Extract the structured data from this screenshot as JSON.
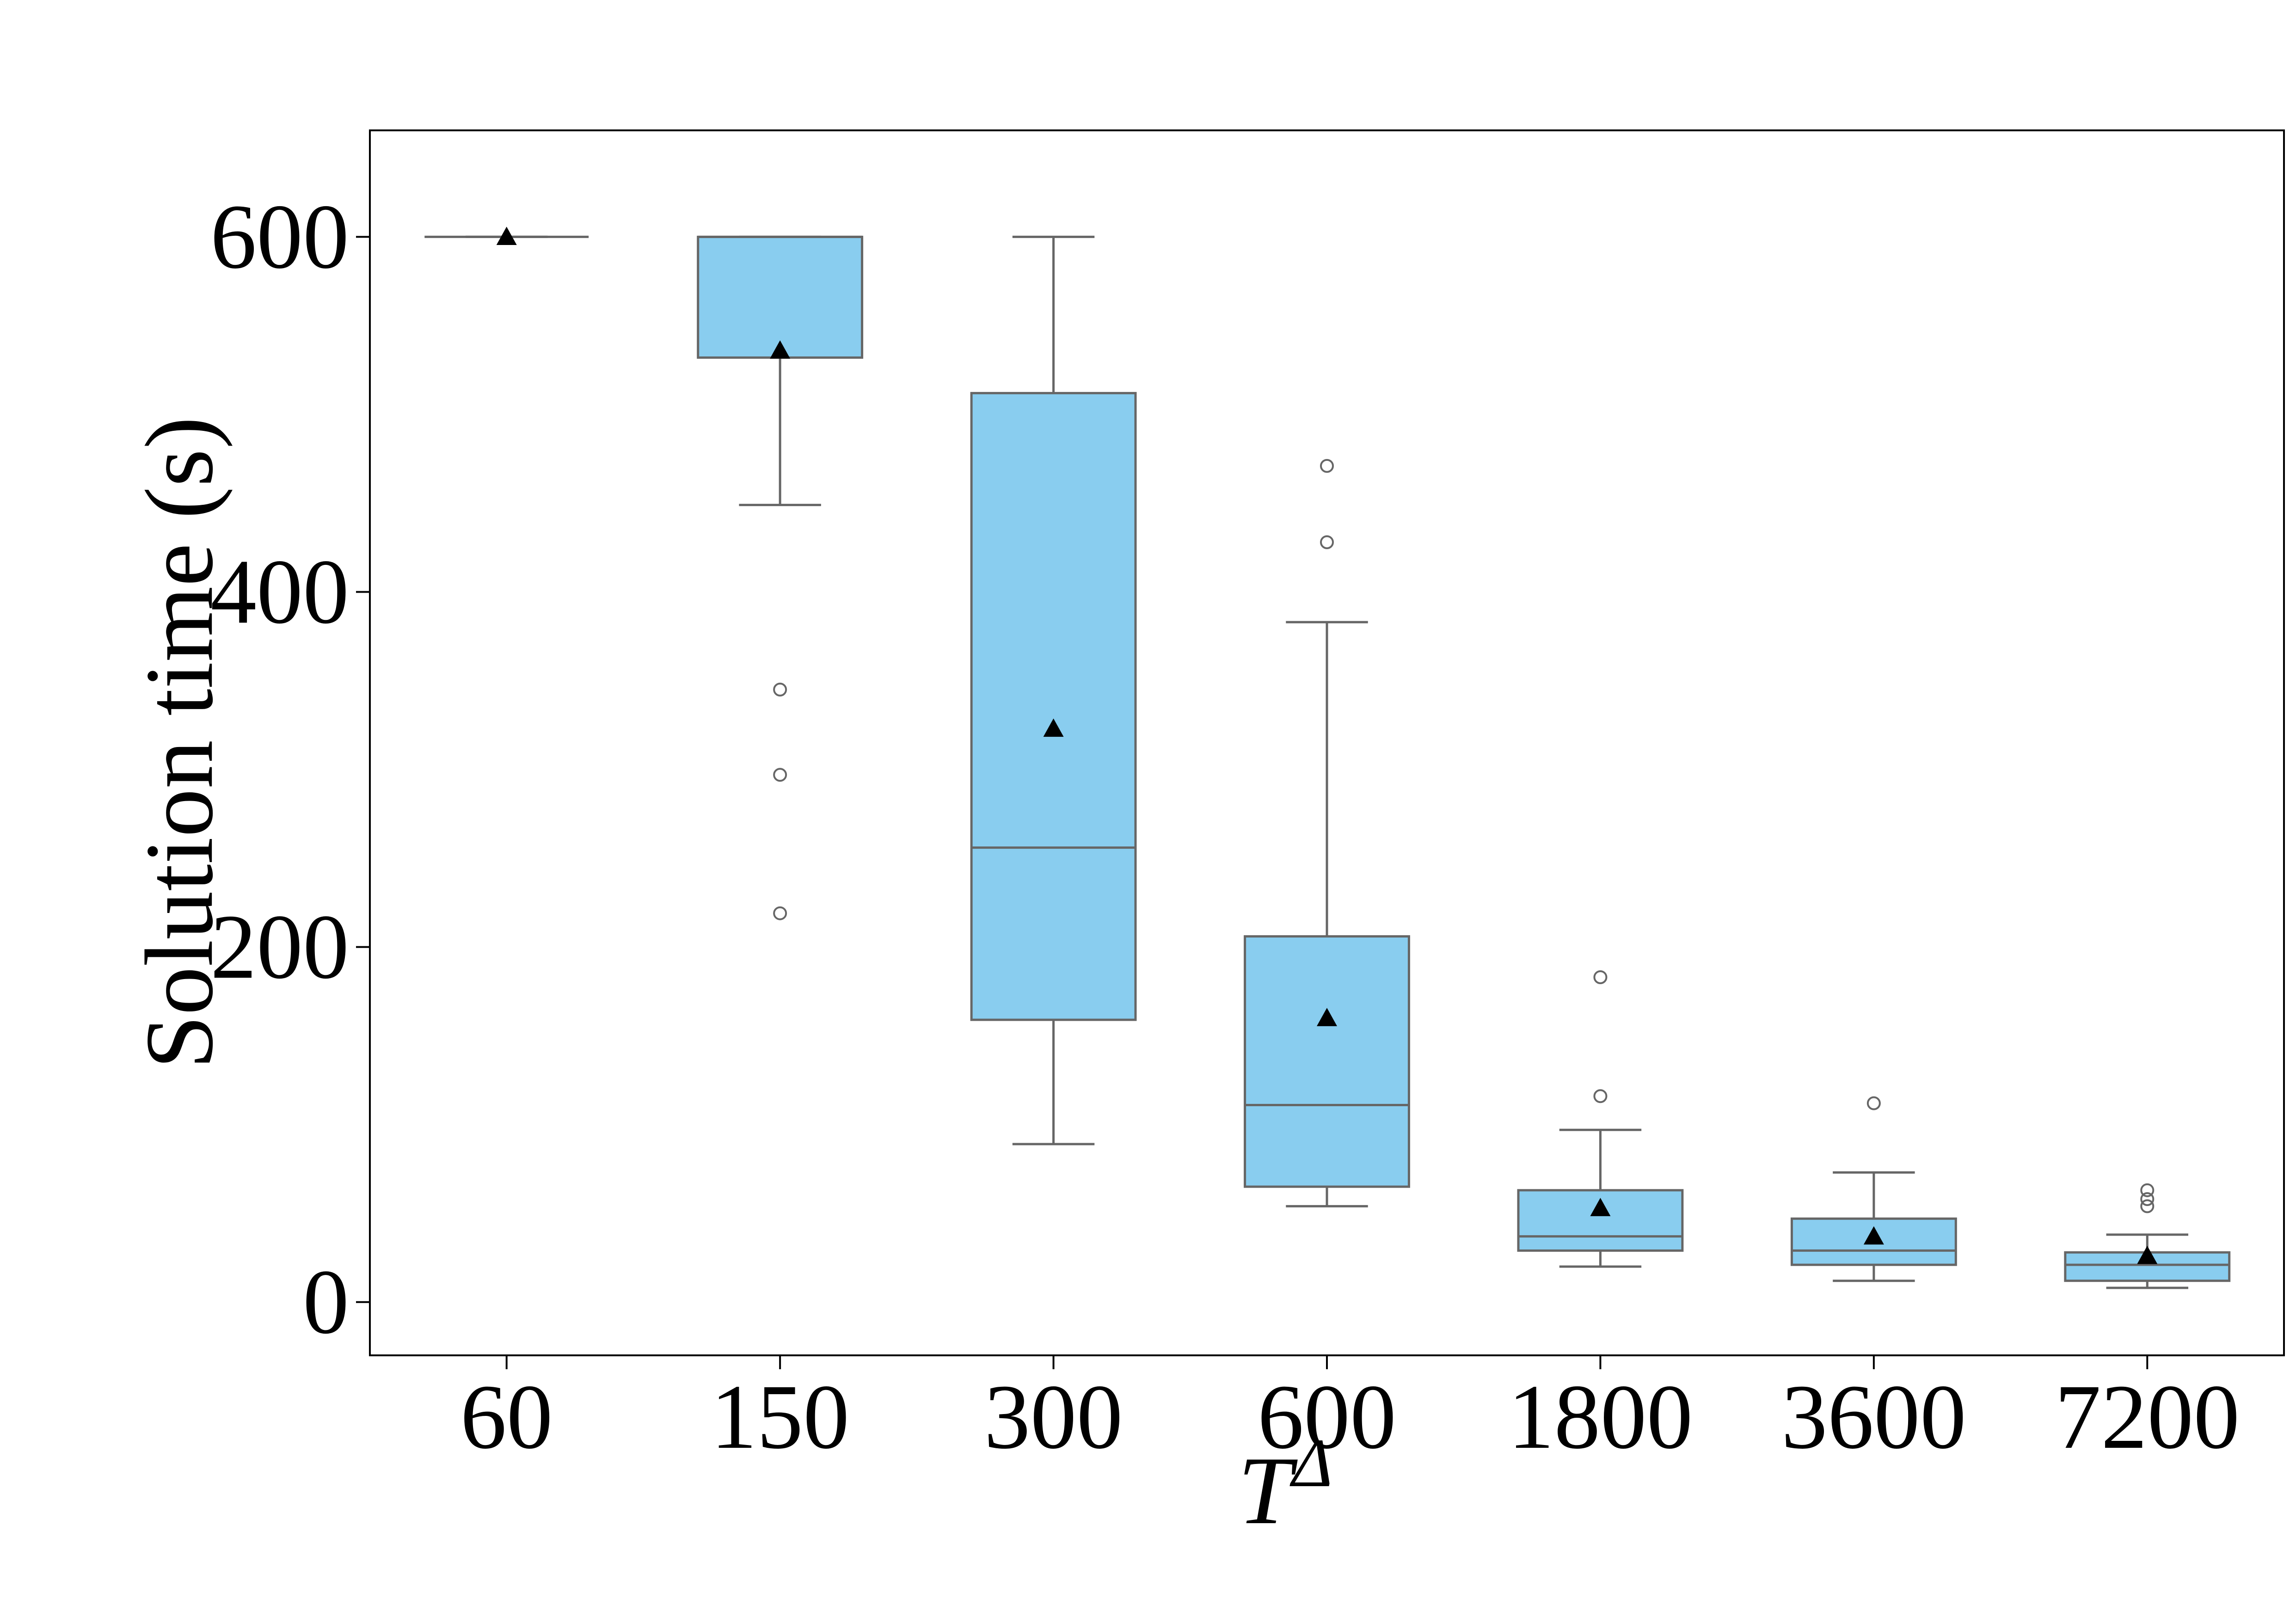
{
  "chart_data": {
    "type": "box",
    "xlabel": "T",
    "xlabel_superscript": "Δ",
    "ylabel": "Solution time (s)",
    "ylim": [
      -30,
      660
    ],
    "yticks": [
      0,
      200,
      400,
      600
    ],
    "grid": false,
    "box_color": "#89CDEF",
    "line_color": "#666666",
    "mean_marker_color": "#000000",
    "categories": [
      "60",
      "150",
      "300",
      "600",
      "1800",
      "3600",
      "7200"
    ],
    "boxes": [
      {
        "q1": 600,
        "median": 600,
        "q3": 600,
        "whisker_low": 600,
        "whisker_high": 600,
        "mean": 600,
        "outliers": []
      },
      {
        "q1": 532,
        "median": 600,
        "q3": 600,
        "whisker_low": 449,
        "whisker_high": 600,
        "mean": 536,
        "outliers": [
          345,
          297,
          219
        ]
      },
      {
        "q1": 159,
        "median": 256,
        "q3": 512,
        "whisker_low": 89,
        "whisker_high": 600,
        "mean": 323,
        "outliers": []
      },
      {
        "q1": 65,
        "median": 111,
        "q3": 206,
        "whisker_low": 54,
        "whisker_high": 383,
        "mean": 160,
        "outliers": [
          471,
          428
        ]
      },
      {
        "q1": 29,
        "median": 37,
        "q3": 63,
        "whisker_low": 20,
        "whisker_high": 97,
        "mean": 53,
        "outliers": [
          183,
          116
        ]
      },
      {
        "q1": 21,
        "median": 29,
        "q3": 47,
        "whisker_low": 12,
        "whisker_high": 73,
        "mean": 37,
        "outliers": [
          112
        ]
      },
      {
        "q1": 12,
        "median": 21,
        "q3": 28,
        "whisker_low": 8,
        "whisker_high": 38,
        "mean": 26,
        "outliers": [
          63,
          58,
          54
        ]
      }
    ]
  }
}
